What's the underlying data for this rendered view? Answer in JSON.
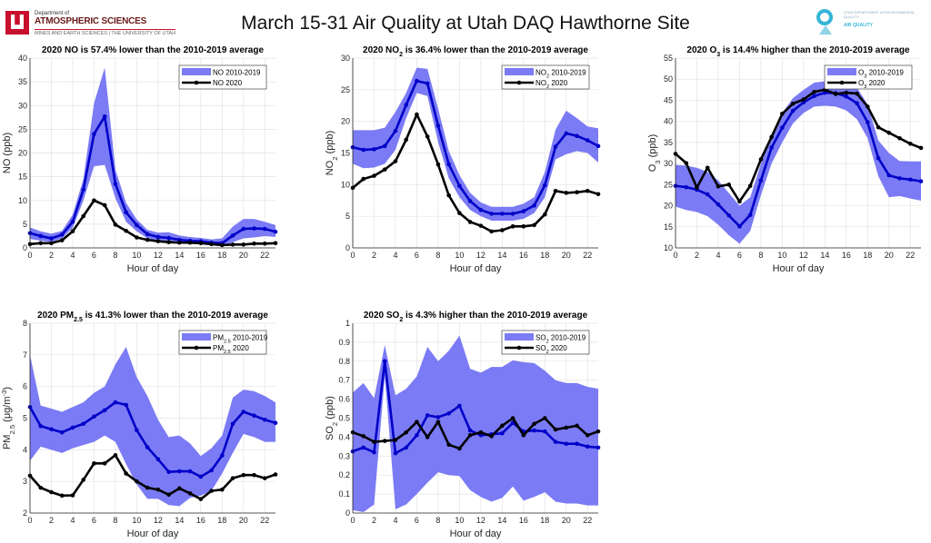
{
  "header": {
    "title": "March 15-31 Air Quality at Utah DAQ Hawthorne Site",
    "left_logo": {
      "dept": "Department of",
      "name": "ATMOSPHERIC SCIENCES",
      "sub": "MINES AND EARTH SCIENCES | THE UNIVERSITY OF UTAH"
    },
    "right_logo": {
      "dept": "UTAH DEPARTMENT of ENVIRONMENTAL QUALITY",
      "name": "AIR QUALITY"
    }
  },
  "colors": {
    "band": "#7b7bf5",
    "average_line": "#0000c8",
    "line_2020": "#000000",
    "grid": "#e3e3e3"
  },
  "chart_data": [
    {
      "type": "line",
      "title": [
        {
          "t": "2020 NO is 57.4% lower than the 2010-2019 average"
        }
      ],
      "xlabel": "Hour of day",
      "ylabel": [
        {
          "t": "NO (ppb)"
        }
      ],
      "xlim": [
        0,
        23
      ],
      "ylim": [
        0,
        40
      ],
      "xticks": [
        0,
        2,
        4,
        6,
        8,
        10,
        12,
        14,
        16,
        18,
        20,
        22
      ],
      "yticks": [
        0,
        5,
        10,
        15,
        20,
        25,
        30,
        35,
        40
      ],
      "grid": true,
      "legend": "top-right",
      "legend_band": [
        {
          "t": "NO 2010-2019"
        }
      ],
      "legend_line": [
        {
          "t": "NO 2020"
        }
      ],
      "x": [
        0,
        1,
        2,
        3,
        4,
        5,
        6,
        7,
        8,
        9,
        10,
        11,
        12,
        13,
        14,
        15,
        16,
        17,
        18,
        19,
        20,
        21,
        22,
        23
      ],
      "band_upper": [
        4.3,
        3.5,
        3.0,
        3.6,
        7,
        14.5,
        30.5,
        38,
        16.5,
        9.5,
        6,
        3.8,
        3.2,
        3.3,
        2.6,
        2.3,
        2.1,
        1.8,
        2.0,
        4.5,
        6.1,
        6.1,
        5.5,
        4.8
      ],
      "band_lower": [
        1.9,
        1.5,
        1.2,
        2.0,
        4.2,
        10,
        17.2,
        17.5,
        10.5,
        5.5,
        3.5,
        2.0,
        1.5,
        1.0,
        0.9,
        0.8,
        0.8,
        0.5,
        0.3,
        1.2,
        2.0,
        2.2,
        2.5,
        2.3
      ],
      "average": [
        3.1,
        2.5,
        2.0,
        2.8,
        5.5,
        12.3,
        24,
        27.7,
        13.5,
        7.5,
        4.8,
        2.9,
        2.3,
        2.1,
        1.7,
        1.5,
        1.4,
        1.1,
        1.0,
        2.6,
        4.0,
        4.1,
        4.0,
        3.4
      ],
      "values_2020": [
        0.8,
        1.0,
        1.0,
        1.6,
        3.5,
        6.7,
        10,
        9,
        4.9,
        3.6,
        2.2,
        1.7,
        1.4,
        1.2,
        1.1,
        1.1,
        1.0,
        0.8,
        0.6,
        0.7,
        0.7,
        0.9,
        0.9,
        1.0
      ]
    },
    {
      "type": "line",
      "title": [
        {
          "t": "2020 NO"
        },
        {
          "t": "2",
          "s": "sub"
        },
        {
          "t": " is 36.4% lower than the 2010-2019 average"
        }
      ],
      "xlabel": "Hour of day",
      "ylabel": [
        {
          "t": "NO"
        },
        {
          "t": "2",
          "s": "sub"
        },
        {
          "t": " (ppb)"
        }
      ],
      "xlim": [
        0,
        23
      ],
      "ylim": [
        0,
        30
      ],
      "xticks": [
        0,
        2,
        4,
        6,
        8,
        10,
        12,
        14,
        16,
        18,
        20,
        22
      ],
      "yticks": [
        0,
        5,
        10,
        15,
        20,
        25,
        30
      ],
      "grid": true,
      "legend": "top-right",
      "legend_band": [
        {
          "t": "NO"
        },
        {
          "t": "2",
          "s": "sub"
        },
        {
          "t": " 2010-2019"
        }
      ],
      "legend_line": [
        {
          "t": "NO"
        },
        {
          "t": "2",
          "s": "sub"
        },
        {
          "t": " 2020"
        }
      ],
      "x": [
        0,
        1,
        2,
        3,
        4,
        5,
        6,
        7,
        8,
        9,
        10,
        11,
        12,
        13,
        14,
        15,
        16,
        17,
        18,
        19,
        20,
        21,
        22,
        23
      ],
      "band_upper": [
        18.6,
        18.6,
        18.6,
        19,
        21.5,
        24.5,
        28.5,
        28.3,
        22,
        15.3,
        11.5,
        8.7,
        7.2,
        6.5,
        6.5,
        6.5,
        7,
        8,
        12,
        18.7,
        21.7,
        20.5,
        19.2,
        18.9
      ],
      "band_lower": [
        13.3,
        12.6,
        12.7,
        13.3,
        15.5,
        20.5,
        24.5,
        24,
        16.7,
        11,
        8,
        6,
        5,
        4.3,
        4.3,
        4.3,
        4.6,
        5.5,
        8,
        14,
        14.8,
        15.3,
        15,
        13.5
      ],
      "average": [
        15.9,
        15.5,
        15.6,
        16.1,
        18.5,
        22.6,
        26.4,
        26,
        19.3,
        13.2,
        9.8,
        7.4,
        6,
        5.4,
        5.4,
        5.4,
        5.8,
        6.7,
        9.9,
        16,
        18.1,
        17.7,
        17,
        16.1
      ],
      "values_2020": [
        9.5,
        10.9,
        11.4,
        12.4,
        13.7,
        17.1,
        21.1,
        17.6,
        13.2,
        8.3,
        5.5,
        4.1,
        3.5,
        2.6,
        2.8,
        3.4,
        3.4,
        3.6,
        5.3,
        9,
        8.7,
        8.8,
        9,
        8.5
      ]
    },
    {
      "type": "line",
      "title": [
        {
          "t": "2020 O"
        },
        {
          "t": "3",
          "s": "sub"
        },
        {
          "t": " is 14.4% higher than the 2010-2019 average"
        }
      ],
      "xlabel": "Hour of day",
      "ylabel": [
        {
          "t": "O"
        },
        {
          "t": "3",
          "s": "sub"
        },
        {
          "t": " (ppb)"
        }
      ],
      "xlim": [
        0,
        23
      ],
      "ylim": [
        10,
        55
      ],
      "xticks": [
        0,
        2,
        4,
        6,
        8,
        10,
        12,
        14,
        16,
        18,
        20,
        22
      ],
      "yticks": [
        10,
        15,
        20,
        25,
        30,
        35,
        40,
        45,
        50,
        55
      ],
      "grid": true,
      "legend": "top-right",
      "legend_band": [
        {
          "t": "O"
        },
        {
          "t": "3",
          "s": "sub"
        },
        {
          "t": " 2010-2019"
        }
      ],
      "legend_line": [
        {
          "t": "O"
        },
        {
          "t": "3",
          "s": "sub"
        },
        {
          "t": " 2020"
        }
      ],
      "x": [
        0,
        1,
        2,
        3,
        4,
        5,
        6,
        7,
        8,
        9,
        10,
        11,
        12,
        13,
        14,
        15,
        16,
        17,
        18,
        19,
        20,
        21,
        22,
        23
      ],
      "band_upper": [
        29.7,
        29.5,
        29,
        28,
        26,
        23,
        20,
        22,
        30,
        37,
        42,
        45.5,
        47.5,
        49.2,
        49.5,
        49.5,
        49,
        48,
        44,
        35.5,
        32.5,
        30.6,
        30.5,
        30.5
      ],
      "band_lower": [
        19.8,
        19,
        18.5,
        17.5,
        15.5,
        13,
        11,
        14,
        22.5,
        30,
        35,
        39.5,
        42,
        43.5,
        43.7,
        43.5,
        42.6,
        40.5,
        36,
        27,
        22,
        22.3,
        21.7,
        21.2
      ],
      "average": [
        24.7,
        24.4,
        23.8,
        22.7,
        20.3,
        17.7,
        15.1,
        17.8,
        26,
        33.8,
        38.5,
        42.5,
        44.5,
        46,
        46.8,
        46.7,
        45.9,
        44.3,
        39.8,
        31.3,
        27.2,
        26.5,
        26.2,
        25.8
      ],
      "values_2020": [
        32.3,
        30.1,
        24.3,
        29,
        24.6,
        25,
        21,
        24.7,
        31,
        36.3,
        41.8,
        44.2,
        45.2,
        47,
        47.5,
        46.5,
        46.8,
        46.6,
        43.5,
        38.6,
        37.3,
        36,
        34.7,
        33.7
      ]
    },
    {
      "type": "line",
      "title": [
        {
          "t": "2020 PM"
        },
        {
          "t": "2.5",
          "s": "sub"
        },
        {
          "t": " is 41.3% lower than the 2010-2019 average"
        }
      ],
      "xlabel": "Hour of day",
      "ylabel": [
        {
          "t": "PM"
        },
        {
          "t": "2.5",
          "s": "sub"
        },
        {
          "t": " (μg/m"
        },
        {
          "t": "-3",
          "s": "sup"
        },
        {
          "t": ")"
        }
      ],
      "xlim": [
        0,
        23
      ],
      "ylim": [
        2,
        8
      ],
      "xticks": [
        0,
        2,
        4,
        6,
        8,
        10,
        12,
        14,
        16,
        18,
        20,
        22
      ],
      "yticks": [
        2,
        3,
        4,
        5,
        6,
        7,
        8
      ],
      "grid": true,
      "legend": "top-right",
      "legend_band": [
        {
          "t": "PM"
        },
        {
          "t": "2.5",
          "s": "sub"
        },
        {
          "t": " 2010-2019"
        }
      ],
      "legend_line": [
        {
          "t": "PM"
        },
        {
          "t": "2.5",
          "s": "sub"
        },
        {
          "t": " 2020"
        }
      ],
      "x": [
        0,
        1,
        2,
        3,
        4,
        5,
        6,
        7,
        8,
        9,
        10,
        11,
        12,
        13,
        14,
        15,
        16,
        17,
        18,
        19,
        20,
        21,
        22,
        23
      ],
      "band_upper": [
        7.0,
        5.4,
        5.3,
        5.2,
        5.35,
        5.5,
        5.8,
        6.0,
        6.7,
        7.25,
        6.3,
        5.7,
        4.95,
        4.4,
        4.45,
        4.2,
        3.8,
        4.05,
        4.45,
        5.65,
        5.9,
        5.85,
        5.7,
        5.5
      ],
      "band_lower": [
        3.65,
        4.1,
        4.0,
        3.9,
        4.05,
        4.15,
        4.25,
        4.45,
        4.25,
        3.55,
        2.9,
        2.45,
        2.45,
        2.25,
        2.22,
        2.48,
        2.55,
        2.7,
        3.25,
        3.9,
        4.5,
        4.4,
        4.25,
        4.25
      ],
      "average": [
        5.35,
        4.75,
        4.65,
        4.55,
        4.7,
        4.82,
        5.05,
        5.25,
        5.5,
        5.42,
        4.62,
        4.08,
        3.7,
        3.3,
        3.32,
        3.32,
        3.15,
        3.35,
        3.82,
        4.82,
        5.2,
        5.08,
        4.95,
        4.85
      ],
      "values_2020": [
        3.18,
        2.8,
        2.66,
        2.55,
        2.56,
        3.05,
        3.57,
        3.57,
        3.83,
        3.25,
        3.0,
        2.8,
        2.74,
        2.58,
        2.78,
        2.62,
        2.44,
        2.7,
        2.74,
        3.1,
        3.2,
        3.2,
        3.1,
        3.22
      ]
    },
    {
      "type": "line",
      "title": [
        {
          "t": "2020 SO"
        },
        {
          "t": "2",
          "s": "sub"
        },
        {
          "t": " is 4.3% higher than the 2010-2019 average"
        }
      ],
      "xlabel": "Hour of day",
      "ylabel": [
        {
          "t": "SO"
        },
        {
          "t": "2",
          "s": "sub"
        },
        {
          "t": " (ppb)"
        }
      ],
      "xlim": [
        0,
        23
      ],
      "ylim": [
        0,
        1
      ],
      "xticks": [
        0,
        2,
        4,
        6,
        8,
        10,
        12,
        14,
        16,
        18,
        20,
        22
      ],
      "yticks": [
        0,
        0.1,
        0.2,
        0.3,
        0.4,
        0.5,
        0.6,
        0.7,
        0.8,
        0.9,
        1
      ],
      "grid": true,
      "legend": "top-right",
      "legend_band": [
        {
          "t": "SO"
        },
        {
          "t": "2",
          "s": "sub"
        },
        {
          "t": " 2010-2019"
        }
      ],
      "legend_line": [
        {
          "t": "SO"
        },
        {
          "t": "2",
          "s": "sub"
        },
        {
          "t": " 2020"
        }
      ],
      "x": [
        0,
        1,
        2,
        3,
        4,
        5,
        6,
        7,
        8,
        9,
        10,
        11,
        12,
        13,
        14,
        15,
        16,
        17,
        18,
        19,
        20,
        21,
        22,
        23
      ],
      "band_upper": [
        0.635,
        0.685,
        0.605,
        0.885,
        0.62,
        0.655,
        0.72,
        0.875,
        0.8,
        0.855,
        0.935,
        0.76,
        0.74,
        0.77,
        0.77,
        0.805,
        0.795,
        0.79,
        0.75,
        0.7,
        0.685,
        0.685,
        0.665,
        0.655
      ],
      "band_lower": [
        0.015,
        0.005,
        0.045,
        0.72,
        0.02,
        0.045,
        0.1,
        0.16,
        0.215,
        0.2,
        0.195,
        0.12,
        0.085,
        0.06,
        0.08,
        0.14,
        0.065,
        0.085,
        0.11,
        0.06,
        0.05,
        0.05,
        0.04,
        0.04
      ],
      "average": [
        0.325,
        0.345,
        0.32,
        0.8,
        0.315,
        0.345,
        0.41,
        0.515,
        0.505,
        0.525,
        0.565,
        0.435,
        0.41,
        0.415,
        0.42,
        0.475,
        0.43,
        0.435,
        0.43,
        0.375,
        0.365,
        0.365,
        0.35,
        0.345
      ],
      "values_2020": [
        0.425,
        0.405,
        0.375,
        0.38,
        0.385,
        0.425,
        0.48,
        0.4,
        0.48,
        0.36,
        0.34,
        0.41,
        0.425,
        0.405,
        0.46,
        0.5,
        0.41,
        0.47,
        0.5,
        0.44,
        0.45,
        0.46,
        0.41,
        0.43
      ]
    }
  ]
}
